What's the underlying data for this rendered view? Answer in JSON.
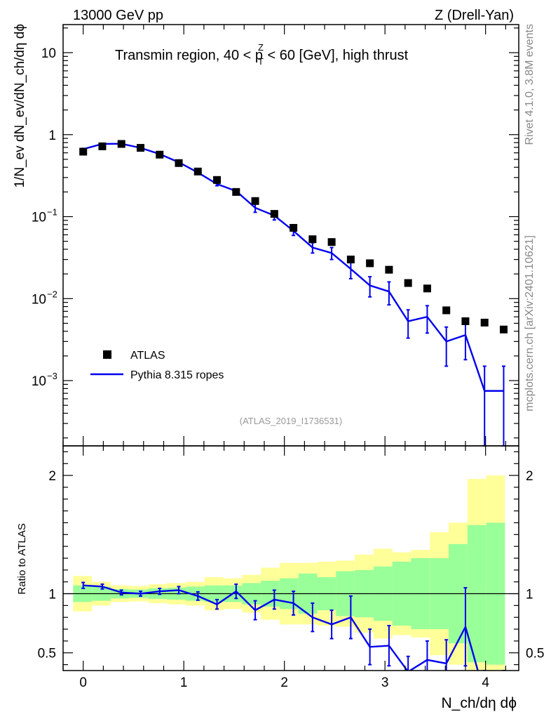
{
  "header": {
    "energy_label": "13000 GeV pp",
    "process_label": "Z (Drell-Yan)",
    "region_prefix": "Transmin region, 40 < p",
    "region_sup": "Z",
    "region_sub": "T",
    "region_suffix": " < 60 [GeV], high thrust",
    "rivet_label": "Rivet 4.1.0,  3.8M events",
    "mcplots_label": "mcplots.cern.ch [arXiv:2401.10621]",
    "analysis_label": "(ATLAS_2019_I1736531)"
  },
  "chart_data": {
    "type": "scatter",
    "title": "Transmin region, 40 < pT(Z) < 60 [GeV], high thrust",
    "xlabel": "N_ch/dη dϕ",
    "ylabel": "1/N_ev dN_ev/dN_ch/dη dϕ",
    "ratio_ylabel": "Ratio to ATLAS",
    "xlim": [
      -0.2,
      4.33
    ],
    "ylim": [
      0.00016,
      22
    ],
    "ratio_ylim": [
      0.35,
      2.25
    ],
    "legend": [
      "ATLAS",
      "Pythia 8.315 ropes"
    ],
    "legend_position": "lower-left",
    "x_ticks": [
      0,
      1,
      2,
      3,
      4
    ],
    "ratio_ticks": [
      0.5,
      1,
      2
    ],
    "bin_edges": [
      -0.1,
      0.087,
      0.273,
      0.46,
      0.647,
      0.833,
      1.02,
      1.207,
      1.393,
      1.58,
      1.767,
      1.953,
      2.14,
      2.327,
      2.513,
      2.7,
      2.887,
      3.073,
      3.26,
      3.447,
      3.633,
      3.82,
      4.007,
      4.193,
      4.33
    ],
    "series": [
      {
        "name": "ATLAS",
        "x": [
          0.0,
          0.19,
          0.38,
          0.57,
          0.76,
          0.95,
          1.14,
          1.33,
          1.52,
          1.71,
          1.9,
          2.09,
          2.28,
          2.47,
          2.66,
          2.85,
          3.04,
          3.23,
          3.42,
          3.61,
          3.8,
          3.99,
          4.18
        ],
        "values": [
          0.62,
          0.72,
          0.77,
          0.69,
          0.57,
          0.45,
          0.355,
          0.28,
          0.2,
          0.155,
          0.108,
          0.073,
          0.053,
          0.049,
          0.03,
          0.027,
          0.0225,
          0.0155,
          0.0133,
          0.0072,
          0.0053,
          0.0051,
          0.0042
        ]
      },
      {
        "name": "Pythia 8.315 ropes",
        "x": [
          0.0,
          0.19,
          0.38,
          0.57,
          0.76,
          0.95,
          1.14,
          1.33,
          1.52,
          1.71,
          1.9,
          2.09,
          2.28,
          2.47,
          2.66,
          2.85,
          3.04,
          3.23,
          3.42,
          3.61,
          3.8,
          3.99,
          4.18
        ],
        "values": [
          0.665,
          0.77,
          0.775,
          0.69,
          0.58,
          0.46,
          0.345,
          0.25,
          0.205,
          0.128,
          0.103,
          0.067,
          0.042,
          0.036,
          0.023,
          0.0145,
          0.0122,
          0.0053,
          0.006,
          0.003,
          0.0036,
          0.00075,
          0.00075
        ],
        "err_low": [
          0.015,
          0.015,
          0.015,
          0.015,
          0.012,
          0.012,
          0.01,
          0.012,
          0.012,
          0.015,
          0.012,
          0.008,
          0.006,
          0.006,
          0.0055,
          0.004,
          0.0038,
          0.002,
          0.0022,
          0.0015,
          0.0018,
          0.00065,
          0.00065
        ],
        "err_high": [
          0.015,
          0.015,
          0.015,
          0.015,
          0.012,
          0.012,
          0.01,
          0.012,
          0.012,
          0.015,
          0.012,
          0.008,
          0.006,
          0.006,
          0.0055,
          0.004,
          0.0038,
          0.002,
          0.0022,
          0.0015,
          0.0018,
          0.00075,
          0.00075
        ]
      }
    ],
    "ratio": {
      "values": [
        1.07,
        1.06,
        1.01,
        1.0,
        1.02,
        1.03,
        0.98,
        0.91,
        1.02,
        0.86,
        0.95,
        0.92,
        0.8,
        0.74,
        0.8,
        0.55,
        0.56,
        0.34,
        0.44,
        0.41,
        0.72,
        0.15,
        0.18
      ],
      "err": [
        0.025,
        0.02,
        0.02,
        0.02,
        0.025,
        0.03,
        0.035,
        0.04,
        0.06,
        0.08,
        0.08,
        0.1,
        0.12,
        0.12,
        0.18,
        0.15,
        0.17,
        0.13,
        0.16,
        0.2,
        0.33,
        0.12,
        0.12
      ],
      "band_inner": [
        0.07,
        0.06,
        0.04,
        0.035,
        0.045,
        0.05,
        0.06,
        0.07,
        0.07,
        0.09,
        0.11,
        0.13,
        0.17,
        0.14,
        0.19,
        0.2,
        0.23,
        0.27,
        0.3,
        0.3,
        0.42,
        0.58,
        0.6
      ],
      "band_outer": [
        0.15,
        0.1,
        0.07,
        0.065,
        0.08,
        0.09,
        0.1,
        0.14,
        0.13,
        0.16,
        0.22,
        0.26,
        0.26,
        0.27,
        0.28,
        0.33,
        0.38,
        0.35,
        0.37,
        0.52,
        0.6,
        0.97,
        1.0
      ]
    },
    "colors": {
      "data": "#000000",
      "mc": "#0000ee",
      "band_inner": "#99ff99",
      "band_outer": "#ffff99",
      "side_text": "#888888",
      "analysis_text": "#999999"
    }
  }
}
